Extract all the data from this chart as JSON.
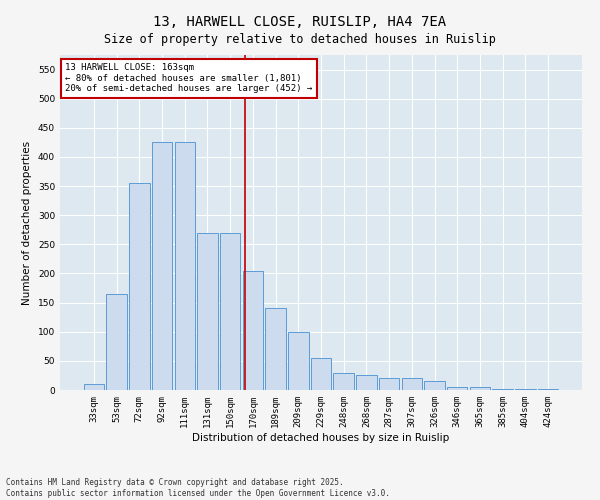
{
  "title": "13, HARWELL CLOSE, RUISLIP, HA4 7EA",
  "subtitle": "Size of property relative to detached houses in Ruislip",
  "xlabel": "Distribution of detached houses by size in Ruislip",
  "ylabel": "Number of detached properties",
  "bar_labels": [
    "33sqm",
    "53sqm",
    "72sqm",
    "92sqm",
    "111sqm",
    "131sqm",
    "150sqm",
    "170sqm",
    "189sqm",
    "209sqm",
    "229sqm",
    "248sqm",
    "268sqm",
    "287sqm",
    "307sqm",
    "326sqm",
    "346sqm",
    "365sqm",
    "385sqm",
    "404sqm",
    "424sqm"
  ],
  "bar_values": [
    10,
    165,
    355,
    425,
    425,
    270,
    270,
    205,
    140,
    100,
    55,
    30,
    25,
    20,
    20,
    15,
    5,
    5,
    2,
    1,
    1
  ],
  "bar_color": "#ccdcee",
  "bar_edge_color": "#5b9bd5",
  "vline_color": "#c00000",
  "annotation_text": "13 HARWELL CLOSE: 163sqm\n← 80% of detached houses are smaller (1,801)\n20% of semi-detached houses are larger (452) →",
  "annotation_box_color": "#ffffff",
  "annotation_box_edge_color": "#c00000",
  "ylim": [
    0,
    575
  ],
  "yticks": [
    0,
    50,
    100,
    150,
    200,
    250,
    300,
    350,
    400,
    450,
    500,
    550
  ],
  "plot_bg_color": "#dde8f0",
  "fig_bg_color": "#f5f5f5",
  "footer_text": "Contains HM Land Registry data © Crown copyright and database right 2025.\nContains public sector information licensed under the Open Government Licence v3.0.",
  "grid_color": "#ffffff",
  "title_fontsize": 10,
  "subtitle_fontsize": 8.5,
  "axis_label_fontsize": 7.5,
  "tick_fontsize": 6.5,
  "annotation_fontsize": 6.5,
  "footer_fontsize": 5.5
}
